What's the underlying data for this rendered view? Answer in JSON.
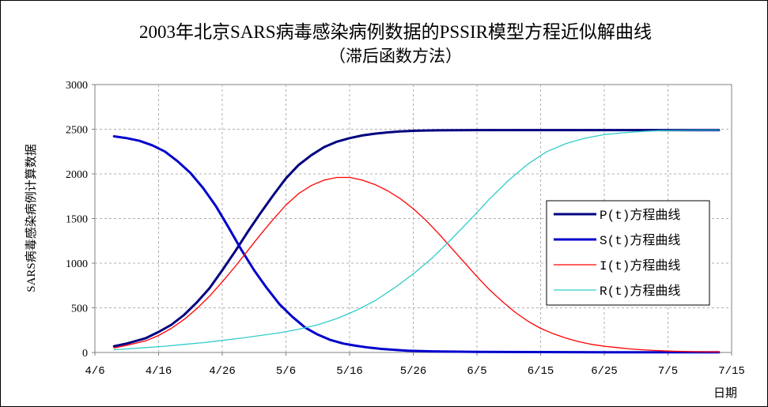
{
  "chart_data": {
    "type": "line",
    "title_line1": "2003年北京SARS病毒感染病例数据的PSSIR模型方程近似解曲线",
    "title_line2": "（滞后函数方法）",
    "xlabel": "日期",
    "ylabel": "SARS病毒感染病例计算数据",
    "ylim": [
      0,
      3000
    ],
    "yticks": [
      "0",
      "500",
      "1000",
      "1500",
      "2000",
      "2500",
      "3000"
    ],
    "xticks": [
      "4/6",
      "4/16",
      "4/26",
      "5/6",
      "5/16",
      "5/26",
      "6/5",
      "6/15",
      "6/25",
      "7/5",
      "7/15"
    ],
    "x_domain": [
      "4/6",
      "7/15"
    ],
    "grid": true,
    "legend_position": "right",
    "series": [
      {
        "name": "P(t)方程曲线",
        "color": "#000080",
        "x": [
          "4/9",
          "4/11",
          "4/14",
          "4/16",
          "4/18",
          "4/20",
          "4/22",
          "4/24",
          "4/26",
          "4/28",
          "4/30",
          "5/2",
          "5/4",
          "5/6",
          "5/8",
          "5/10",
          "5/12",
          "5/14",
          "5/16",
          "5/18",
          "5/20",
          "5/22",
          "5/24",
          "5/26",
          "5/28",
          "5/30",
          "6/5",
          "6/15",
          "6/25",
          "7/5",
          "7/13"
        ],
        "y": [
          70,
          100,
          160,
          230,
          310,
          420,
          560,
          720,
          920,
          1130,
          1350,
          1560,
          1760,
          1950,
          2100,
          2210,
          2300,
          2360,
          2400,
          2430,
          2450,
          2465,
          2475,
          2482,
          2486,
          2488,
          2490,
          2490,
          2490,
          2490,
          2490
        ]
      },
      {
        "name": "S(t)方程曲线",
        "color": "#0000CC",
        "x": [
          "4/9",
          "4/11",
          "4/13",
          "4/15",
          "4/17",
          "4/19",
          "4/21",
          "4/23",
          "4/25",
          "4/27",
          "4/29",
          "5/1",
          "5/3",
          "5/5",
          "5/7",
          "5/9",
          "5/11",
          "5/13",
          "5/15",
          "5/17",
          "5/19",
          "5/21",
          "5/23",
          "5/25",
          "5/29",
          "6/5",
          "6/15",
          "6/25",
          "7/5",
          "7/13"
        ],
        "y": [
          2420,
          2400,
          2370,
          2320,
          2250,
          2140,
          2010,
          1840,
          1640,
          1400,
          1150,
          920,
          720,
          540,
          400,
          280,
          200,
          140,
          100,
          75,
          55,
          40,
          30,
          20,
          12,
          6,
          4,
          3,
          2,
          2
        ]
      },
      {
        "name": "I(t)方程曲线",
        "color": "#FF0000",
        "x": [
          "4/9",
          "4/11",
          "4/14",
          "4/16",
          "4/18",
          "4/20",
          "4/22",
          "4/24",
          "4/26",
          "4/28",
          "4/30",
          "5/2",
          "5/4",
          "5/6",
          "5/8",
          "5/10",
          "5/12",
          "5/14",
          "5/16",
          "5/18",
          "5/20",
          "5/22",
          "5/24",
          "5/26",
          "5/28",
          "5/30",
          "6/1",
          "6/3",
          "6/5",
          "6/7",
          "6/9",
          "6/11",
          "6/13",
          "6/15",
          "6/17",
          "6/19",
          "6/21",
          "6/23",
          "6/25",
          "6/27",
          "6/29",
          "7/1",
          "7/3",
          "7/5",
          "7/7",
          "7/9",
          "7/13"
        ],
        "y": [
          50,
          80,
          130,
          190,
          270,
          370,
          490,
          630,
          790,
          960,
          1140,
          1320,
          1490,
          1650,
          1780,
          1870,
          1930,
          1960,
          1960,
          1930,
          1880,
          1810,
          1720,
          1610,
          1480,
          1330,
          1170,
          1010,
          850,
          700,
          570,
          450,
          350,
          270,
          210,
          160,
          120,
          90,
          70,
          55,
          40,
          30,
          22,
          16,
          12,
          9,
          6
        ]
      },
      {
        "name": "R(t)方程曲线",
        "color": "#33CCCC",
        "x": [
          "4/9",
          "4/11",
          "4/14",
          "4/17",
          "4/20",
          "4/23",
          "4/26",
          "4/29",
          "5/2",
          "5/5",
          "5/8",
          "5/11",
          "5/14",
          "5/17",
          "5/20",
          "5/23",
          "5/26",
          "5/29",
          "6/1",
          "6/4",
          "6/7",
          "6/10",
          "6/13",
          "6/16",
          "6/19",
          "6/22",
          "6/25",
          "6/28",
          "7/1",
          "7/4",
          "7/7",
          "7/10",
          "7/13"
        ],
        "y": [
          30,
          40,
          55,
          70,
          90,
          110,
          135,
          160,
          190,
          220,
          260,
          310,
          380,
          470,
          580,
          720,
          880,
          1060,
          1270,
          1490,
          1720,
          1930,
          2110,
          2250,
          2340,
          2400,
          2440,
          2460,
          2475,
          2485,
          2488,
          2490,
          2490
        ]
      }
    ]
  }
}
